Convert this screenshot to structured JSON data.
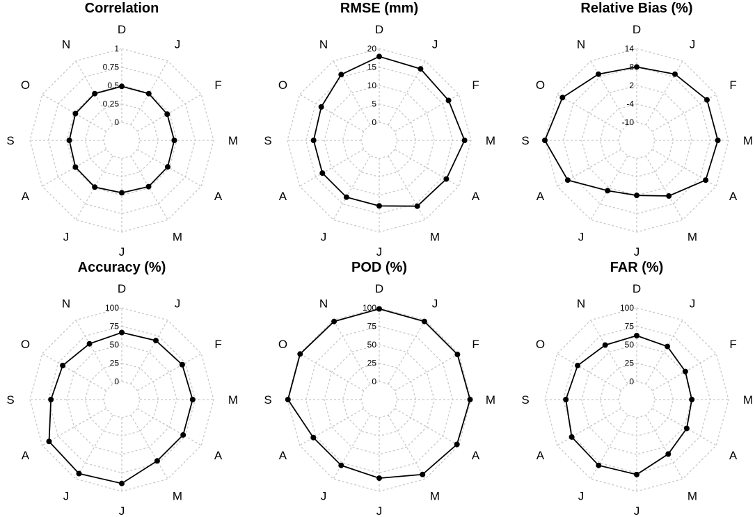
{
  "chart_data": [
    {
      "type": "radar",
      "title": "Correlation",
      "axes": [
        "D",
        "J",
        "F",
        "M",
        "A",
        "M",
        "J",
        "J",
        "A",
        "S",
        "O",
        "N"
      ],
      "tick_labels": [
        "1",
        "0.75",
        "0.5",
        "0.25",
        "0"
      ],
      "rlim": [
        -0.75,
        1
      ],
      "values": [
        0.28,
        0.28,
        0.25,
        0.25,
        0.26,
        0.27,
        0.25,
        0.28,
        0.27,
        0.25,
        0.27,
        0.28
      ],
      "grid": true
    },
    {
      "type": "radar",
      "title": "RMSE (mm)",
      "axes": [
        "D",
        "J",
        "F",
        "M",
        "A",
        "M",
        "J",
        "J",
        "A",
        "S",
        "O",
        "N"
      ],
      "tick_labels": [
        "20",
        "15",
        "10",
        "5",
        "0"
      ],
      "rlim": [
        -15,
        20
      ],
      "values": [
        17,
        16.5,
        15.5,
        17.5,
        14.5,
        14,
        10,
        10,
        10,
        10,
        10.5,
        14
      ],
      "grid": true
    },
    {
      "type": "radar",
      "title": "Relative Bias (%)",
      "axes": [
        "D",
        "J",
        "F",
        "M",
        "A",
        "M",
        "J",
        "J",
        "A",
        "S",
        "O",
        "N"
      ],
      "tick_labels": [
        "14",
        "8",
        "2",
        "-4",
        "-10"
      ],
      "rlim": [
        -40,
        20
      ],
      "values": [
        8,
        10,
        13,
        13,
        12,
        2,
        -4,
        -2,
        12,
        20,
        16,
        10
      ],
      "grid": true
    },
    {
      "type": "radar",
      "title": "Accuracy (%)",
      "axes": [
        "D",
        "J",
        "F",
        "M",
        "A",
        "M",
        "J",
        "J",
        "A",
        "S",
        "O",
        "N"
      ],
      "tick_labels": [
        "100",
        "75",
        "50",
        "25",
        "0"
      ],
      "rlim": [
        -75,
        100
      ],
      "values": [
        53,
        55,
        58,
        60,
        60,
        60,
        85,
        88,
        85,
        60,
        55,
        48
      ],
      "grid": true
    },
    {
      "type": "radar",
      "title": "POD (%)",
      "axes": [
        "D",
        "J",
        "F",
        "M",
        "A",
        "M",
        "J",
        "J",
        "A",
        "S",
        "O",
        "N"
      ],
      "tick_labels": [
        "100",
        "75",
        "50",
        "25",
        "0"
      ],
      "rlim": [
        -75,
        100
      ],
      "values": [
        98,
        97,
        97,
        98,
        96,
        90,
        75,
        70,
        70,
        99,
        99,
        97
      ],
      "grid": true
    },
    {
      "type": "radar",
      "title": "FAR (%)",
      "axes": [
        "D",
        "J",
        "F",
        "M",
        "A",
        "M",
        "J",
        "J",
        "A",
        "S",
        "O",
        "N"
      ],
      "tick_labels": [
        "100",
        "75",
        "50",
        "25",
        "0"
      ],
      "rlim": [
        -75,
        100
      ],
      "values": [
        47,
        42,
        32,
        30,
        35,
        45,
        68,
        70,
        68,
        60,
        55,
        45
      ],
      "grid": true
    }
  ]
}
